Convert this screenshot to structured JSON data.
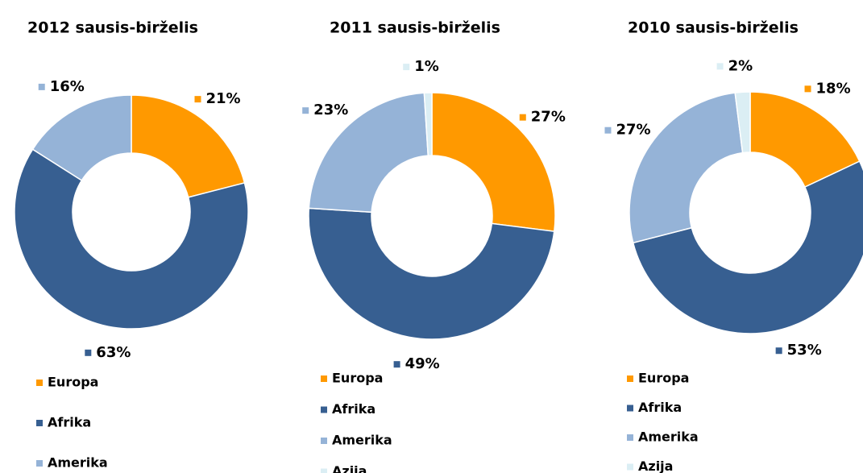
{
  "chart_data": [
    {
      "type": "pie",
      "title": "2012 sausis-birželis",
      "categories": [
        "Europa",
        "Afrika",
        "Amerika"
      ],
      "values": [
        21,
        63,
        16
      ],
      "value_labels": [
        "21%",
        "63%",
        "16%"
      ],
      "colors": [
        "#ff9900",
        "#375f91",
        "#95b3d7"
      ],
      "donut": true,
      "legend": "bottom"
    },
    {
      "type": "pie",
      "title": "2011 sausis-birželis",
      "categories": [
        "Europa",
        "Afrika",
        "Amerika",
        "Azija"
      ],
      "values": [
        27,
        49,
        23,
        1
      ],
      "value_labels": [
        "27%",
        "49%",
        "23%",
        "1%"
      ],
      "colors": [
        "#ff9900",
        "#375f91",
        "#95b3d7",
        "#dbeef4"
      ],
      "donut": true,
      "legend": "bottom"
    },
    {
      "type": "pie",
      "title": "2010 sausis-birželis",
      "categories": [
        "Europa",
        "Afrika",
        "Amerika",
        "Azija"
      ],
      "values": [
        18,
        53,
        27,
        2
      ],
      "value_labels": [
        "18%",
        "53%",
        "27%",
        "2%"
      ],
      "colors": [
        "#ff9900",
        "#375f91",
        "#95b3d7",
        "#dbeef4"
      ],
      "donut": true,
      "legend": "bottom"
    }
  ]
}
